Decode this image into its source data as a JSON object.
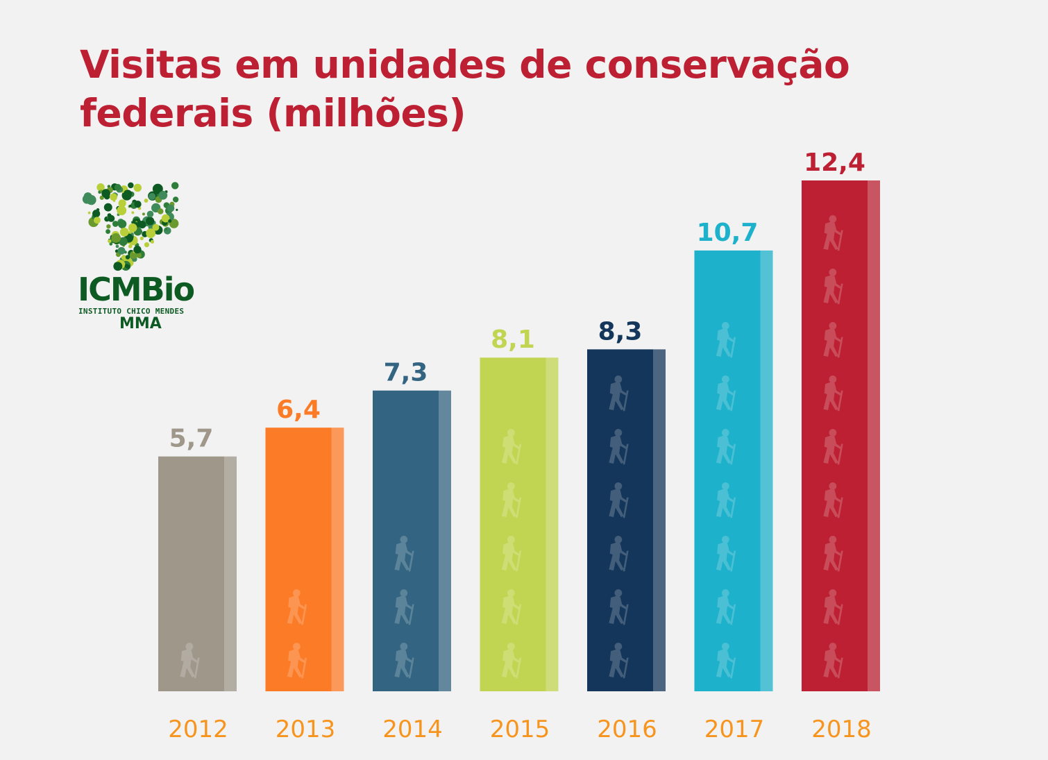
{
  "logo": {
    "name": "ICMBio",
    "subtitle": "INSTITUTO CHICO MENDES",
    "ministry": "MMA",
    "colors": [
      "#0d5a22",
      "#2e7d3a",
      "#6a9a2e",
      "#b8cf3a",
      "#3f8a5a"
    ]
  },
  "chart_data": {
    "type": "bar",
    "title": "Visitas em unidades de conservação federais (milhões)",
    "categories": [
      "2012",
      "2013",
      "2014",
      "2015",
      "2016",
      "2017",
      "2018"
    ],
    "values": [
      5.7,
      6.4,
      7.3,
      8.1,
      8.3,
      10.7,
      12.4
    ],
    "value_labels": [
      "5,7",
      "6,4",
      "7,3",
      "8,1",
      "8,3",
      "10,7",
      "12,4"
    ],
    "colors": [
      "#9e978a",
      "#fc7b27",
      "#336481",
      "#c2d552",
      "#14365a",
      "#1eb1cb",
      "#bc2032"
    ],
    "label_colors": [
      "#9e978a",
      "#fc7b27",
      "#336481",
      "#c2d552",
      "#14365a",
      "#1eb1cb",
      "#bc2032"
    ],
    "hiker_counts": [
      1,
      2,
      3,
      5,
      6,
      7,
      9
    ],
    "icon": "hiker-icon",
    "tick_color": "#f7941d",
    "ylim": [
      0,
      12.4
    ],
    "grid": false,
    "legend": "none"
  }
}
